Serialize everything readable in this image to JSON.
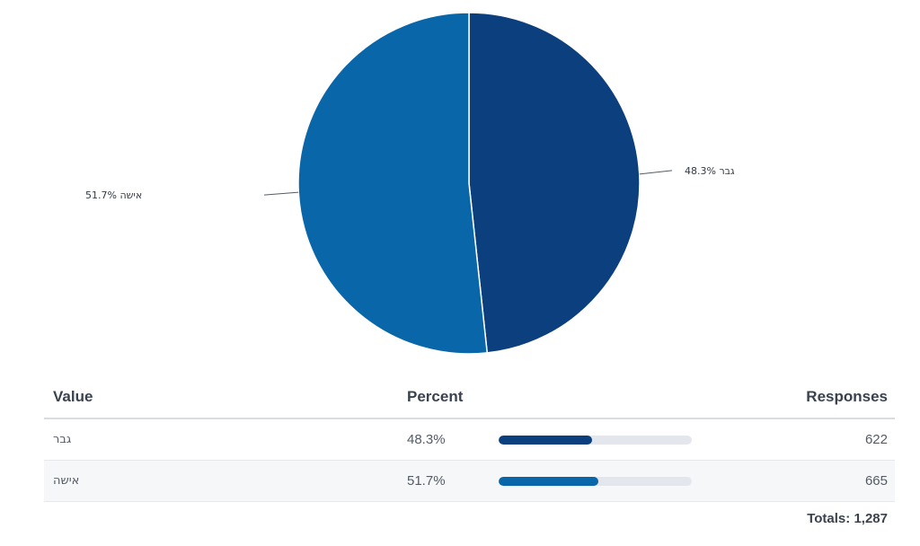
{
  "chart_data": {
    "type": "pie",
    "slices": [
      {
        "label": "גבר",
        "percent": 48.3,
        "percent_label": "48.3%",
        "color": "#0b3f7d"
      },
      {
        "label": "אישה",
        "percent": 51.7,
        "percent_label": "51.7%",
        "color": "#0966a8"
      }
    ]
  },
  "table": {
    "headers": {
      "value": "Value",
      "percent": "Percent",
      "responses": "Responses"
    },
    "rows": [
      {
        "value": "גבר",
        "percent_label": "48.3%",
        "percent": 48.3,
        "responses": "622",
        "bar_color": "#0b3f7d"
      },
      {
        "value": "אישה",
        "percent_label": "51.7%",
        "percent": 51.7,
        "responses": "665",
        "bar_color": "#0966a8"
      }
    ],
    "totals_label": "Totals:",
    "totals_value": "1,287"
  }
}
